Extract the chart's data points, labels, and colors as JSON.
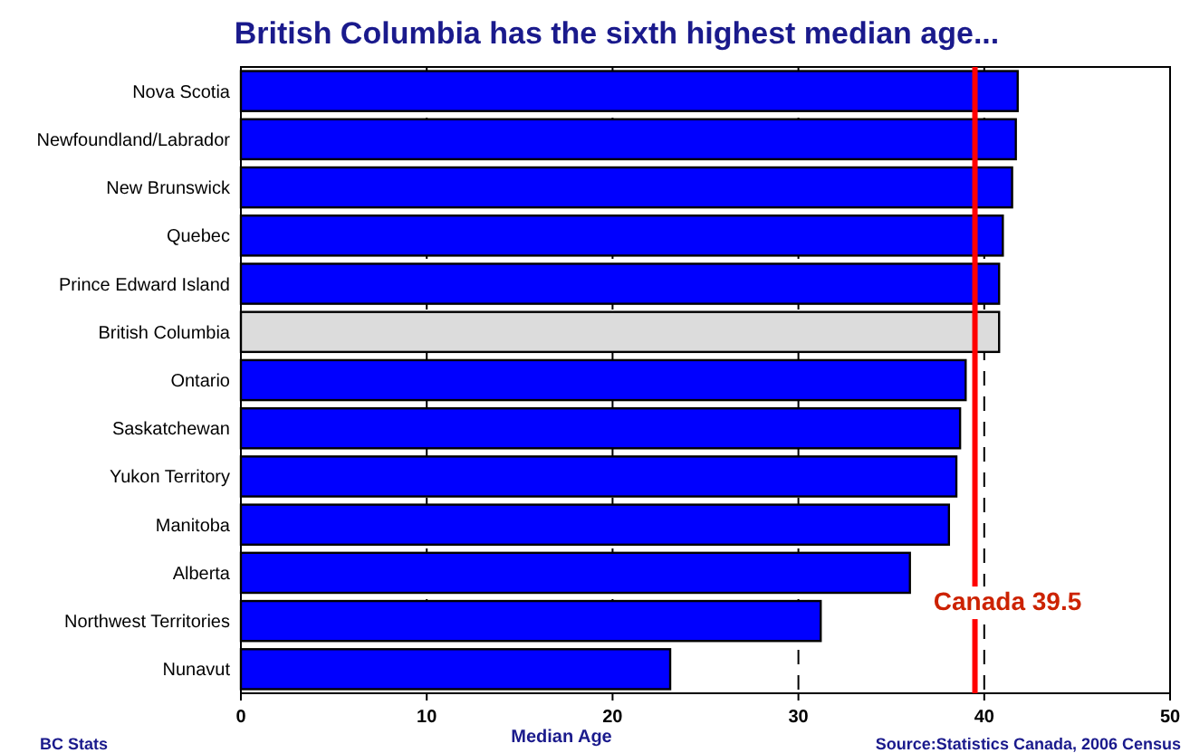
{
  "chart_data": {
    "type": "bar",
    "orientation": "horizontal",
    "title": "British Columbia has the sixth highest median age...",
    "xlabel": "Median Age",
    "categories": [
      "Nova Scotia",
      "Newfoundland/Labrador",
      "New Brunswick",
      "Quebec",
      "Prince Edward Island",
      "British Columbia",
      "Ontario",
      "Saskatchewan",
      "Yukon Territory",
      "Manitoba",
      "Alberta",
      "Northwest Territories",
      "Nunavut"
    ],
    "values": [
      41.8,
      41.7,
      41.5,
      41.0,
      40.8,
      40.8,
      39.0,
      38.7,
      38.5,
      38.1,
      36.0,
      31.2,
      23.1
    ],
    "colors": [
      "#0000ff",
      "#0000ff",
      "#0000ff",
      "#0000ff",
      "#0000ff",
      "#dcdcdc",
      "#0000ff",
      "#0000ff",
      "#0000ff",
      "#0000ff",
      "#0000ff",
      "#0000ff",
      "#0000ff"
    ],
    "xlim": [
      0,
      50
    ],
    "xticks": [
      0,
      10,
      20,
      30,
      40,
      50
    ],
    "grid": "x",
    "ref_lines": [
      {
        "axis": "x",
        "value": 39.5,
        "label": "Canada 39.5",
        "color": "#ff0000"
      }
    ],
    "annotations": [
      "BC Stats",
      "Source:Statistics Canada, 2006 Census"
    ]
  }
}
